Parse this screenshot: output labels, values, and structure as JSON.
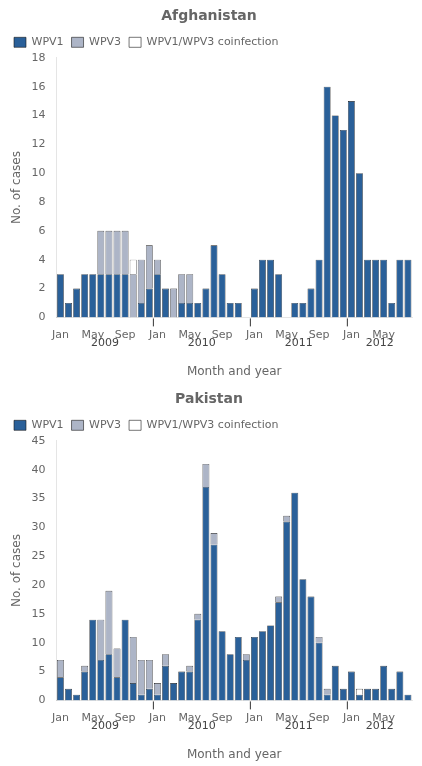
{
  "chart_data": [
    {
      "type": "bar",
      "title": "Afghanistan",
      "xlabel": "Month and year",
      "ylabel": "No. of cases",
      "categories": [
        "Jan",
        null,
        null,
        null,
        "May",
        null,
        null,
        null,
        "Sep",
        null,
        null,
        null,
        "Jan",
        null,
        null,
        null,
        "May",
        null,
        null,
        null,
        "Sep",
        null,
        null,
        null,
        "Jan",
        null,
        null,
        null,
        "May",
        null,
        null,
        null,
        "Sep",
        null,
        null,
        null,
        "Jan",
        null,
        null,
        null,
        "May",
        null,
        null,
        null
      ],
      "series": [
        {
          "name": "WPV1",
          "color": "#2a6099",
          "values": [
            3,
            1,
            2,
            3,
            3,
            3,
            3,
            3,
            3,
            0,
            1,
            2,
            3,
            2,
            0,
            1,
            1,
            1,
            2,
            5,
            3,
            1,
            1,
            0,
            2,
            4,
            4,
            3,
            0,
            1,
            1,
            2,
            4,
            16,
            14,
            13,
            15,
            10,
            4,
            4,
            4,
            1,
            4,
            4
          ]
        },
        {
          "name": "WPV3",
          "color": "#adb5c7",
          "values": [
            0,
            0,
            0,
            0,
            0,
            3,
            3,
            3,
            3,
            3,
            3,
            3,
            1,
            0,
            2,
            2,
            2,
            0,
            0,
            0,
            0,
            0,
            0,
            0,
            0,
            0,
            0,
            0,
            0,
            0,
            0,
            0,
            0,
            0,
            0,
            0,
            0,
            0,
            0,
            0,
            0,
            0,
            0,
            0
          ]
        },
        {
          "name": "WPV1/WPV3 coinfection",
          "color": "#ffffff",
          "values": [
            0,
            0,
            0,
            0,
            0,
            0,
            0,
            0,
            0,
            1,
            0,
            0,
            0,
            0,
            0,
            0,
            0,
            0,
            0,
            0,
            0,
            0,
            0,
            0,
            0,
            0,
            0,
            0,
            0,
            0,
            0,
            0,
            0,
            0,
            0,
            0,
            0,
            0,
            0,
            0,
            0,
            0,
            0,
            0
          ]
        }
      ],
      "ylim": [
        0,
        18
      ],
      "yticks": [
        0,
        2,
        4,
        6,
        8,
        10,
        12,
        14,
        16,
        18
      ],
      "stacked": true,
      "grid": false,
      "legend": "top",
      "annotations": [
        {
          "type": "line",
          "x": 11.5
        },
        {
          "type": "line",
          "x": 23.5
        },
        {
          "type": "line",
          "x": 35.5
        },
        {
          "text": "2009",
          "x": 5.5
        },
        {
          "text": "2010",
          "x": 17.5
        },
        {
          "text": "2011",
          "x": 29.5
        },
        {
          "text": "2012",
          "x": 39.5
        }
      ]
    },
    {
      "type": "bar",
      "title": "Pakistan",
      "xlabel": "Month and year",
      "ylabel": "No. of cases",
      "categories": [
        "Jan",
        null,
        null,
        null,
        "May",
        null,
        null,
        null,
        "Sep",
        null,
        null,
        null,
        "Jan",
        null,
        null,
        null,
        "May",
        null,
        null,
        null,
        "Sep",
        null,
        null,
        null,
        "Jan",
        null,
        null,
        null,
        "May",
        null,
        null,
        null,
        "Sep",
        null,
        null,
        null,
        "Jan",
        null,
        null,
        null,
        "May",
        null,
        null,
        null
      ],
      "series": [
        {
          "name": "WPV1",
          "color": "#2a6099",
          "values": [
            4,
            2,
            1,
            5,
            14,
            7,
            8,
            4,
            14,
            3,
            1,
            2,
            1,
            6,
            3,
            5,
            5,
            14,
            37,
            27,
            12,
            8,
            11,
            7,
            11,
            12,
            13,
            17,
            31,
            36,
            21,
            18,
            10,
            1,
            6,
            2,
            5,
            1,
            2,
            2,
            6,
            2,
            5,
            1
          ]
        },
        {
          "name": "WPV3",
          "color": "#adb5c7",
          "values": [
            3,
            0,
            0,
            1,
            0,
            7,
            11,
            5,
            0,
            8,
            6,
            5,
            2,
            2,
            0,
            0,
            1,
            1,
            4,
            2,
            0,
            0,
            0,
            1,
            0,
            0,
            0,
            1,
            1,
            0,
            0,
            0,
            1,
            1,
            0,
            0,
            0,
            0,
            0,
            0,
            0,
            0,
            0,
            0
          ]
        },
        {
          "name": "WPV1/WPV3 coinfection",
          "color": "#ffffff",
          "values": [
            0,
            0,
            0,
            0,
            0,
            0,
            0,
            0,
            0,
            0,
            0,
            0,
            0,
            0,
            0,
            0,
            0,
            0,
            0,
            0,
            0,
            0,
            0,
            0,
            0,
            0,
            0,
            0,
            0,
            0,
            0,
            0,
            0,
            0,
            0,
            0,
            0,
            1,
            0,
            0,
            0,
            0,
            0,
            0
          ]
        }
      ],
      "ylim": [
        0,
        45
      ],
      "yticks": [
        0,
        5,
        10,
        15,
        20,
        25,
        30,
        35,
        40,
        45
      ],
      "stacked": true,
      "grid": false,
      "legend": "top",
      "annotations": [
        {
          "type": "line",
          "x": 11.5
        },
        {
          "type": "line",
          "x": 23.5
        },
        {
          "type": "line",
          "x": 35.5
        },
        {
          "text": "2009",
          "x": 5.5
        },
        {
          "text": "2010",
          "x": 17.5
        },
        {
          "text": "2011",
          "x": 29.5
        },
        {
          "text": "2012",
          "x": 39.5
        }
      ]
    }
  ]
}
